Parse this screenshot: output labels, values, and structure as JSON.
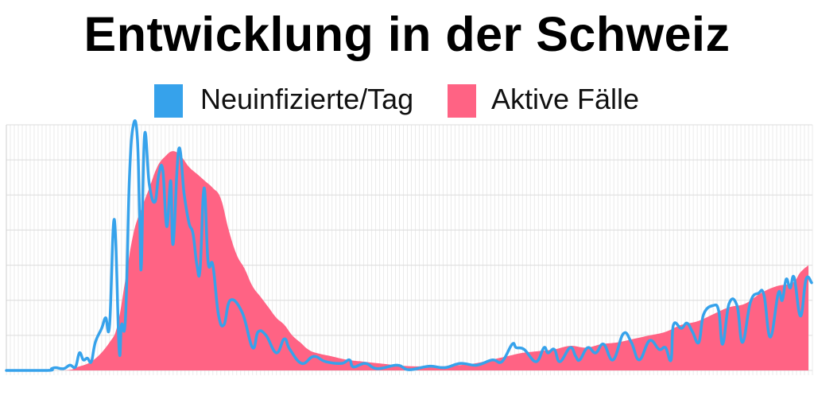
{
  "chart_data": {
    "type": "area",
    "title": "Entwicklung in der Schweiz",
    "xlabel": "",
    "ylabel": "",
    "xlim": [
      0,
      203
    ],
    "ylim": [
      0,
      7
    ],
    "grid": true,
    "legend_position": "top-center",
    "series": [
      {
        "name": "Neuinfizierte/Tag",
        "kind": "line",
        "color": "#36a2eb",
        "points": [
          [
            0,
            0
          ],
          [
            10.4,
            0
          ],
          [
            11.4,
            0.05
          ],
          [
            12.4,
            0.08
          ],
          [
            14.4,
            0.05
          ],
          [
            16,
            0.15
          ],
          [
            17.4,
            0.1
          ],
          [
            18.4,
            0.5
          ],
          [
            19.4,
            0.3
          ],
          [
            20.4,
            0.35
          ],
          [
            21.4,
            0.25
          ],
          [
            22.4,
            0.8
          ],
          [
            24,
            1.2
          ],
          [
            25,
            1.5
          ],
          [
            26,
            1.3
          ],
          [
            27.2,
            4.3
          ],
          [
            28.4,
            0.6
          ],
          [
            29,
            1.3
          ],
          [
            30,
            1.5
          ],
          [
            31,
            5.5
          ],
          [
            32,
            7.0
          ],
          [
            33,
            6.6
          ],
          [
            33.6,
            4.2
          ],
          [
            34,
            3.0
          ],
          [
            34.8,
            6.7
          ],
          [
            36,
            5.3
          ],
          [
            37.4,
            4.8
          ],
          [
            38.4,
            5.6
          ],
          [
            39.4,
            5.7
          ],
          [
            40.4,
            4.1
          ],
          [
            41.4,
            5.4
          ],
          [
            42,
            3.6
          ],
          [
            43.4,
            6.3
          ],
          [
            44.8,
            5.0
          ],
          [
            46,
            4.2
          ],
          [
            47,
            3.9
          ],
          [
            48,
            3.0
          ],
          [
            48.8,
            2.9
          ],
          [
            49.8,
            5.2
          ],
          [
            50.8,
            3.1
          ],
          [
            52,
            3.0
          ],
          [
            53.4,
            1.6
          ],
          [
            54.8,
            1.3
          ],
          [
            56.4,
            2.0
          ],
          [
            59.4,
            1.65
          ],
          [
            62,
            0.65
          ],
          [
            63.4,
            1.1
          ],
          [
            65.4,
            1.0
          ],
          [
            68,
            0.5
          ],
          [
            70,
            0.9
          ],
          [
            71.4,
            0.6
          ],
          [
            74.4,
            0.2
          ],
          [
            77.4,
            0.4
          ],
          [
            80.4,
            0.25
          ],
          [
            84.4,
            0.2
          ],
          [
            86.4,
            0.3
          ],
          [
            87.4,
            0.1
          ],
          [
            90.4,
            0.2
          ],
          [
            93.4,
            0.05
          ],
          [
            98.4,
            0.15
          ],
          [
            101.4,
            0.02
          ],
          [
            106.4,
            0.12
          ],
          [
            110.4,
            0.08
          ],
          [
            114.4,
            0.2
          ],
          [
            118.4,
            0.15
          ],
          [
            122.4,
            0.3
          ],
          [
            124.8,
            0.25
          ],
          [
            127.4,
            0.75
          ],
          [
            128.4,
            0.65
          ],
          [
            130.4,
            0.6
          ],
          [
            133.4,
            0.25
          ],
          [
            135.4,
            0.65
          ],
          [
            136.4,
            0.5
          ],
          [
            138,
            0.6
          ],
          [
            139.4,
            0.25
          ],
          [
            142,
            0.65
          ],
          [
            143.4,
            0.4
          ],
          [
            144.4,
            0.3
          ],
          [
            146.4,
            0.65
          ],
          [
            148.4,
            0.5
          ],
          [
            150.4,
            0.75
          ],
          [
            152.8,
            0.3
          ],
          [
            155.4,
            1.05
          ],
          [
            157.4,
            0.8
          ],
          [
            159.4,
            0.3
          ],
          [
            162,
            0.85
          ],
          [
            164.4,
            0.6
          ],
          [
            166,
            0.65
          ],
          [
            167.4,
            0.3
          ],
          [
            168,
            1.3
          ],
          [
            170,
            1.2
          ],
          [
            171.4,
            1.35
          ],
          [
            172.8,
            1.1
          ],
          [
            174.4,
            0.8
          ],
          [
            175.6,
            1.6
          ],
          [
            178,
            1.85
          ],
          [
            179.4,
            1.7
          ],
          [
            180.4,
            0.75
          ],
          [
            182,
            1.9
          ],
          [
            184,
            1.85
          ],
          [
            185.4,
            0.8
          ],
          [
            187.4,
            1.95
          ],
          [
            189.4,
            2.2
          ],
          [
            190.8,
            2.15
          ],
          [
            192.4,
            0.95
          ],
          [
            194.4,
            2.2
          ],
          [
            195.4,
            2.0
          ],
          [
            196.4,
            2.6
          ],
          [
            197.4,
            2.35
          ],
          [
            198.4,
            2.65
          ],
          [
            200,
            1.55
          ],
          [
            201.4,
            2.6
          ],
          [
            202.8,
            2.5
          ]
        ]
      },
      {
        "name": "Aktive Fälle",
        "kind": "area",
        "color": "#ff6384",
        "points": [
          [
            0,
            0
          ],
          [
            14,
            0
          ],
          [
            18,
            0.1
          ],
          [
            22,
            0.3
          ],
          [
            26,
            0.8
          ],
          [
            28,
            1.3
          ],
          [
            30,
            2.6
          ],
          [
            32,
            3.9
          ],
          [
            34,
            4.6
          ],
          [
            36,
            5.2
          ],
          [
            38,
            5.8
          ],
          [
            40,
            6.1
          ],
          [
            42,
            6.25
          ],
          [
            44,
            6.1
          ],
          [
            46,
            5.8
          ],
          [
            48,
            5.6
          ],
          [
            50,
            5.4
          ],
          [
            52,
            5.2
          ],
          [
            54,
            4.9
          ],
          [
            56,
            4.0
          ],
          [
            58,
            3.3
          ],
          [
            60,
            2.9
          ],
          [
            62,
            2.4
          ],
          [
            64,
            2.1
          ],
          [
            66,
            1.8
          ],
          [
            68,
            1.5
          ],
          [
            70,
            1.3
          ],
          [
            72,
            1.0
          ],
          [
            74,
            0.8
          ],
          [
            76,
            0.6
          ],
          [
            78,
            0.5
          ],
          [
            82,
            0.4
          ],
          [
            86,
            0.3
          ],
          [
            90,
            0.25
          ],
          [
            94,
            0.2
          ],
          [
            98,
            0.15
          ],
          [
            102,
            0.12
          ],
          [
            106,
            0.12
          ],
          [
            110,
            0.12
          ],
          [
            114,
            0.15
          ],
          [
            118,
            0.2
          ],
          [
            122,
            0.3
          ],
          [
            126,
            0.4
          ],
          [
            130,
            0.5
          ],
          [
            134,
            0.55
          ],
          [
            138,
            0.6
          ],
          [
            142,
            0.7
          ],
          [
            146,
            0.65
          ],
          [
            150,
            0.75
          ],
          [
            154,
            0.8
          ],
          [
            158,
            0.9
          ],
          [
            162,
            1.0
          ],
          [
            166,
            1.1
          ],
          [
            170,
            1.3
          ],
          [
            174,
            1.4
          ],
          [
            178,
            1.6
          ],
          [
            182,
            1.8
          ],
          [
            186,
            1.9
          ],
          [
            190,
            2.2
          ],
          [
            194,
            2.4
          ],
          [
            198,
            2.5
          ],
          [
            200,
            2.8
          ],
          [
            202,
            3.0
          ]
        ]
      }
    ]
  }
}
